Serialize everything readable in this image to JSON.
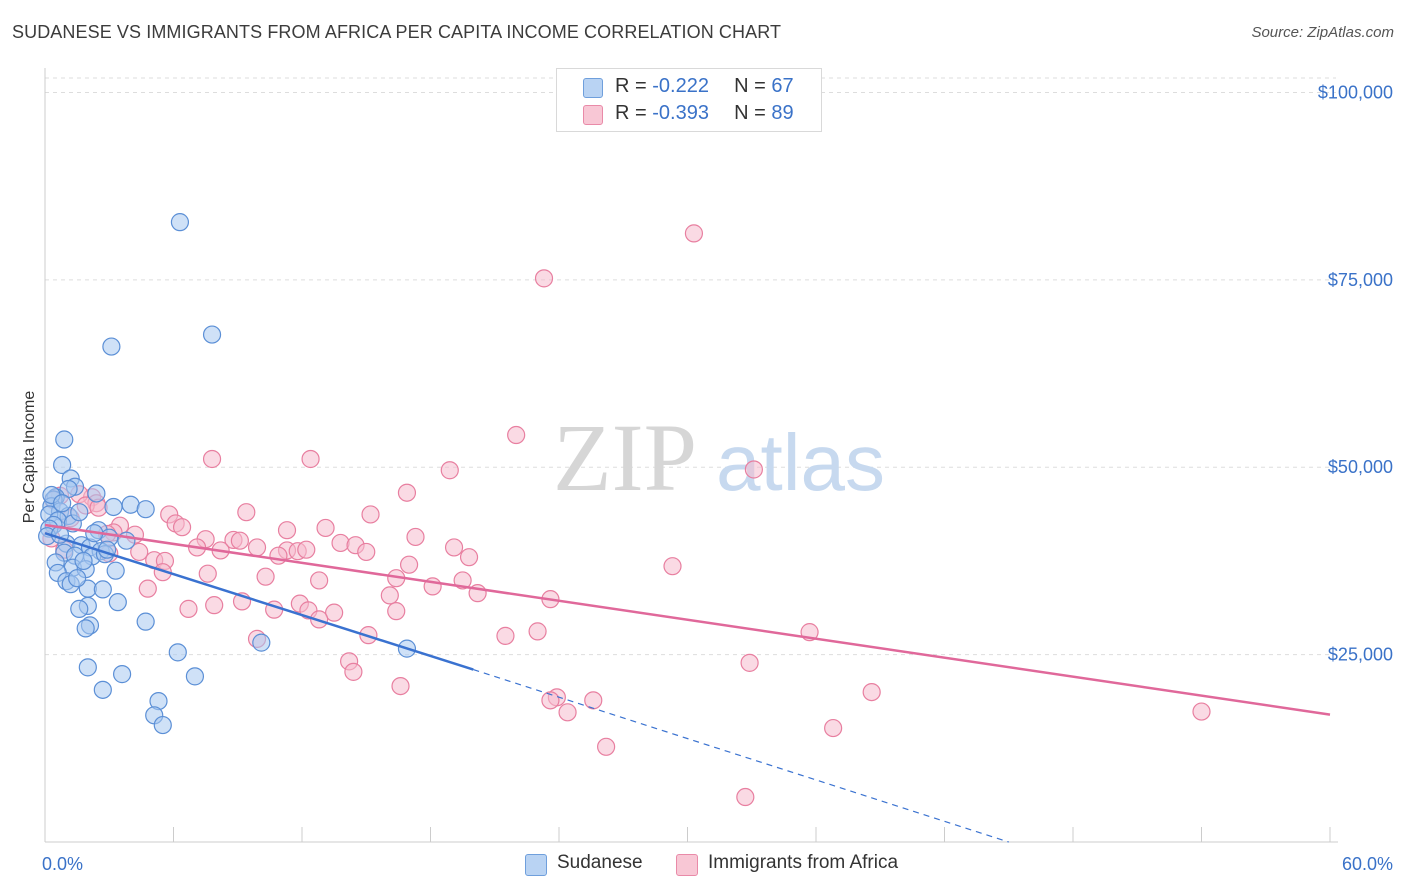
{
  "title": "SUDANESE VS IMMIGRANTS FROM AFRICA PER CAPITA INCOME CORRELATION CHART",
  "source": "Source: ZipAtlas.com",
  "watermark": {
    "part1": "ZIP",
    "part2": "atlas"
  },
  "legend_top": {
    "rows": [
      {
        "r_label": "R = ",
        "r_value": "-0.222",
        "n_label": "N = ",
        "n_value": "67"
      },
      {
        "r_label": "R = ",
        "r_value": "-0.393",
        "n_label": "N = ",
        "n_value": "89"
      }
    ]
  },
  "legend_bottom": {
    "items": [
      "Sudanese",
      "Immigrants from Africa"
    ]
  },
  "colors": {
    "sudanese_fill": "#a8c8f0",
    "sudanese_stroke": "#5b8fd6",
    "sudanese_line": "#3a72d0",
    "africa_fill": "#f6bccd",
    "africa_stroke": "#e87fa0",
    "africa_line": "#e0689a",
    "tick_text": "#3a72c8",
    "grid": "#dddddd"
  },
  "chart_data": {
    "type": "scatter",
    "title": "SUDANESE VS IMMIGRANTS FROM AFRICA PER CAPITA INCOME CORRELATION CHART",
    "xlabel": "",
    "ylabel": "Per Capita Income",
    "xlim": [
      0,
      60
    ],
    "ylim": [
      0,
      105000
    ],
    "x_tick_labels": [
      "0.0%",
      "60.0%"
    ],
    "y_ticks": [
      25000,
      50000,
      75000,
      100000
    ],
    "y_tick_labels": [
      "$25,000",
      "$50,000",
      "$75,000",
      "$100,000"
    ],
    "series": [
      {
        "name": "Sudanese",
        "r": -0.222,
        "n": 67,
        "trend": {
          "x0": 0,
          "y0": 41200,
          "x1": 20,
          "y1": 23000,
          "dash_to_x": 45,
          "dash_to_y": 0
        },
        "points": [
          [
            6.3,
            82700
          ],
          [
            7.8,
            67700
          ],
          [
            3.1,
            66100
          ],
          [
            0.9,
            53700
          ],
          [
            0.8,
            50300
          ],
          [
            1.2,
            48500
          ],
          [
            1.4,
            47400
          ],
          [
            1.1,
            47100
          ],
          [
            0.5,
            46000
          ],
          [
            0.4,
            45700
          ],
          [
            2.4,
            46500
          ],
          [
            4.0,
            45000
          ],
          [
            3.2,
            44700
          ],
          [
            4.7,
            44400
          ],
          [
            0.3,
            44800
          ],
          [
            0.7,
            44100
          ],
          [
            0.2,
            43700
          ],
          [
            1.1,
            43500
          ],
          [
            0.6,
            42900
          ],
          [
            0.4,
            42300
          ],
          [
            0.2,
            41800
          ],
          [
            1.3,
            42500
          ],
          [
            2.5,
            41600
          ],
          [
            3.0,
            40600
          ],
          [
            1.0,
            39800
          ],
          [
            1.7,
            39600
          ],
          [
            2.1,
            39300
          ],
          [
            2.6,
            38800
          ],
          [
            0.9,
            38600
          ],
          [
            1.4,
            38200
          ],
          [
            2.2,
            38100
          ],
          [
            2.8,
            38400
          ],
          [
            0.5,
            37300
          ],
          [
            1.3,
            36600
          ],
          [
            1.9,
            36400
          ],
          [
            3.3,
            36200
          ],
          [
            0.6,
            35900
          ],
          [
            1.0,
            34800
          ],
          [
            1.2,
            34400
          ],
          [
            2.0,
            33800
          ],
          [
            2.7,
            33700
          ],
          [
            3.4,
            32000
          ],
          [
            2.0,
            31500
          ],
          [
            1.6,
            31100
          ],
          [
            4.7,
            29400
          ],
          [
            2.1,
            28900
          ],
          [
            1.9,
            28500
          ],
          [
            10.1,
            26600
          ],
          [
            16.9,
            25800
          ],
          [
            6.2,
            25300
          ],
          [
            2.0,
            23300
          ],
          [
            3.6,
            22400
          ],
          [
            7.0,
            22100
          ],
          [
            2.7,
            20300
          ],
          [
            5.3,
            18800
          ],
          [
            5.1,
            16900
          ],
          [
            5.5,
            15600
          ],
          [
            0.3,
            46300
          ],
          [
            0.8,
            45200
          ],
          [
            1.6,
            44000
          ],
          [
            0.1,
            40800
          ],
          [
            2.3,
            41200
          ],
          [
            1.8,
            37500
          ],
          [
            0.7,
            41000
          ],
          [
            2.9,
            39000
          ],
          [
            1.5,
            35200
          ],
          [
            3.8,
            40200
          ]
        ]
      },
      {
        "name": "Immigrants from Africa",
        "r": -0.393,
        "n": 89,
        "trend": {
          "x0": 0,
          "y0": 42300,
          "x1": 60,
          "y1": 17000
        },
        "points": [
          [
            30.3,
            81200
          ],
          [
            23.3,
            75200
          ],
          [
            22.0,
            54300
          ],
          [
            33.1,
            49700
          ],
          [
            18.9,
            49600
          ],
          [
            7.8,
            51100
          ],
          [
            12.4,
            51100
          ],
          [
            16.9,
            46600
          ],
          [
            2.2,
            46000
          ],
          [
            1.6,
            46400
          ],
          [
            0.7,
            46200
          ],
          [
            2.4,
            45200
          ],
          [
            1.9,
            44900
          ],
          [
            0.4,
            45600
          ],
          [
            5.8,
            43700
          ],
          [
            9.4,
            44000
          ],
          [
            15.2,
            43700
          ],
          [
            6.1,
            42500
          ],
          [
            6.4,
            42000
          ],
          [
            3.5,
            42200
          ],
          [
            13.1,
            41900
          ],
          [
            11.3,
            41600
          ],
          [
            3.2,
            41300
          ],
          [
            2.9,
            41100
          ],
          [
            4.2,
            41000
          ],
          [
            7.5,
            40400
          ],
          [
            8.8,
            40300
          ],
          [
            9.1,
            40200
          ],
          [
            13.8,
            39900
          ],
          [
            14.5,
            39600
          ],
          [
            17.3,
            40700
          ],
          [
            19.1,
            39300
          ],
          [
            7.1,
            39300
          ],
          [
            8.2,
            38900
          ],
          [
            9.9,
            39300
          ],
          [
            11.3,
            38900
          ],
          [
            11.8,
            38800
          ],
          [
            12.2,
            39000
          ],
          [
            15.0,
            38700
          ],
          [
            19.8,
            38000
          ],
          [
            4.4,
            38700
          ],
          [
            5.1,
            37600
          ],
          [
            5.6,
            37500
          ],
          [
            10.9,
            38200
          ],
          [
            17.0,
            37000
          ],
          [
            29.3,
            36800
          ],
          [
            5.5,
            36000
          ],
          [
            7.6,
            35800
          ],
          [
            10.3,
            35400
          ],
          [
            12.8,
            34900
          ],
          [
            16.4,
            35200
          ],
          [
            18.1,
            34100
          ],
          [
            19.5,
            34900
          ],
          [
            4.8,
            33800
          ],
          [
            9.2,
            32100
          ],
          [
            11.9,
            31800
          ],
          [
            16.1,
            32900
          ],
          [
            20.2,
            33200
          ],
          [
            23.6,
            32400
          ],
          [
            6.7,
            31100
          ],
          [
            7.9,
            31600
          ],
          [
            10.7,
            31000
          ],
          [
            12.3,
            30900
          ],
          [
            13.5,
            30600
          ],
          [
            16.4,
            30800
          ],
          [
            12.8,
            29700
          ],
          [
            23.0,
            28100
          ],
          [
            21.5,
            27500
          ],
          [
            15.1,
            27600
          ],
          [
            9.9,
            27100
          ],
          [
            35.7,
            28000
          ],
          [
            14.2,
            24100
          ],
          [
            32.9,
            23900
          ],
          [
            14.4,
            22700
          ],
          [
            16.6,
            20800
          ],
          [
            38.6,
            20000
          ],
          [
            23.9,
            19300
          ],
          [
            23.6,
            18900
          ],
          [
            25.6,
            18900
          ],
          [
            24.4,
            17300
          ],
          [
            54.0,
            17400
          ],
          [
            36.8,
            15200
          ],
          [
            26.2,
            12700
          ],
          [
            32.7,
            6000
          ],
          [
            0.3,
            40500
          ],
          [
            0.9,
            39000
          ],
          [
            1.2,
            43200
          ],
          [
            3.0,
            38500
          ],
          [
            2.5,
            44600
          ]
        ]
      }
    ]
  }
}
